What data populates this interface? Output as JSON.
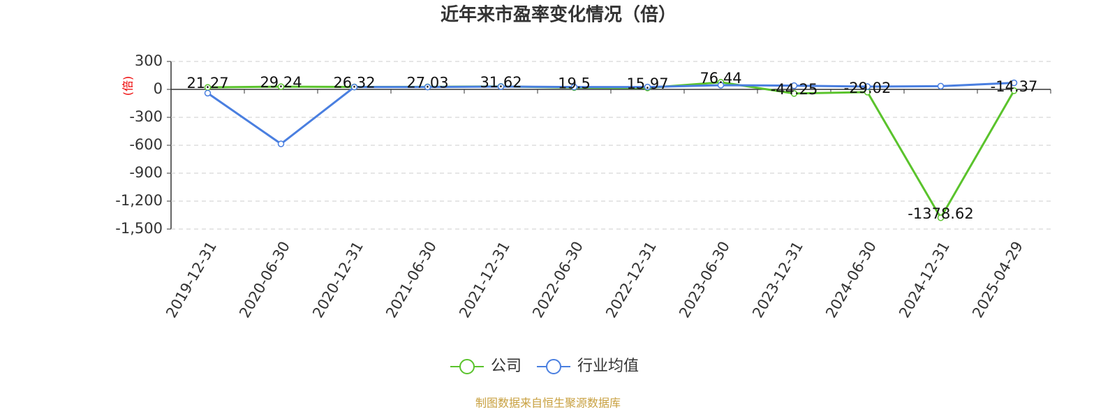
{
  "chart_data": {
    "type": "line",
    "title": "近年来市盈率变化情况（倍）",
    "y_label": "(倍)",
    "categories": [
      "2019-12-31",
      "2020-06-30",
      "2020-12-31",
      "2021-06-30",
      "2021-12-31",
      "2022-06-30",
      "2022-12-31",
      "2023-06-30",
      "2023-12-31",
      "2024-06-30",
      "2024-12-31",
      "2025-04-29"
    ],
    "series": [
      {
        "name": "公司",
        "color": "#5ac32c",
        "values": [
          21.27,
          29.24,
          26.32,
          27.03,
          31.62,
          19.5,
          15.97,
          76.44,
          -44.25,
          -29.02,
          -1378.62,
          -14.37
        ]
      },
      {
        "name": "行业均值",
        "color": "#4a7fe0",
        "values": [
          -40,
          -585,
          25,
          25,
          30,
          25,
          25,
          45,
          40,
          30,
          35,
          70
        ]
      }
    ],
    "ylim": [
      -1500,
      300
    ],
    "yticks": [
      {
        "value": -1500,
        "label": "-1,500"
      },
      {
        "value": -1200,
        "label": "-1,200"
      },
      -900,
      -600,
      -300,
      0,
      300
    ],
    "grid": true,
    "source": "制图数据来自恒生聚源数据库"
  }
}
